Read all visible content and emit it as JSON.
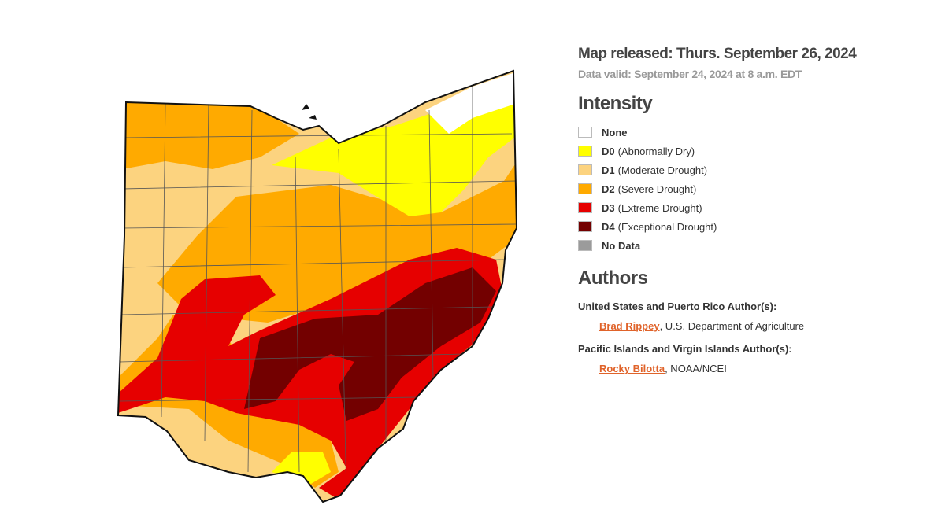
{
  "header": {
    "released": "Map released: Thurs. September 26, 2024",
    "valid": "Data valid: September 24, 2024 at 8 a.m. EDT"
  },
  "intensity": {
    "title": "Intensity",
    "items": [
      {
        "code": "None",
        "desc": "",
        "color": "#ffffff"
      },
      {
        "code": "D0",
        "desc": "(Abnormally Dry)",
        "color": "#ffff00"
      },
      {
        "code": "D1",
        "desc": "(Moderate Drought)",
        "color": "#fcd37f"
      },
      {
        "code": "D2",
        "desc": "(Severe Drought)",
        "color": "#ffaa00"
      },
      {
        "code": "D3",
        "desc": "(Extreme Drought)",
        "color": "#e60000"
      },
      {
        "code": "D4",
        "desc": "(Exceptional Drought)",
        "color": "#730000"
      },
      {
        "code": "No Data",
        "desc": "",
        "color": "#9b9b9b"
      }
    ]
  },
  "authors": {
    "title": "Authors",
    "groups": [
      {
        "heading": "United States and Puerto Rico Author(s):",
        "name": "Brad Rippey",
        "rest": ", U.S. Department of Agriculture"
      },
      {
        "heading": "Pacific Islands and Virgin Islands Author(s):",
        "name": "Rocky Bilotta",
        "rest": ", NOAA/NCEI"
      }
    ]
  }
}
